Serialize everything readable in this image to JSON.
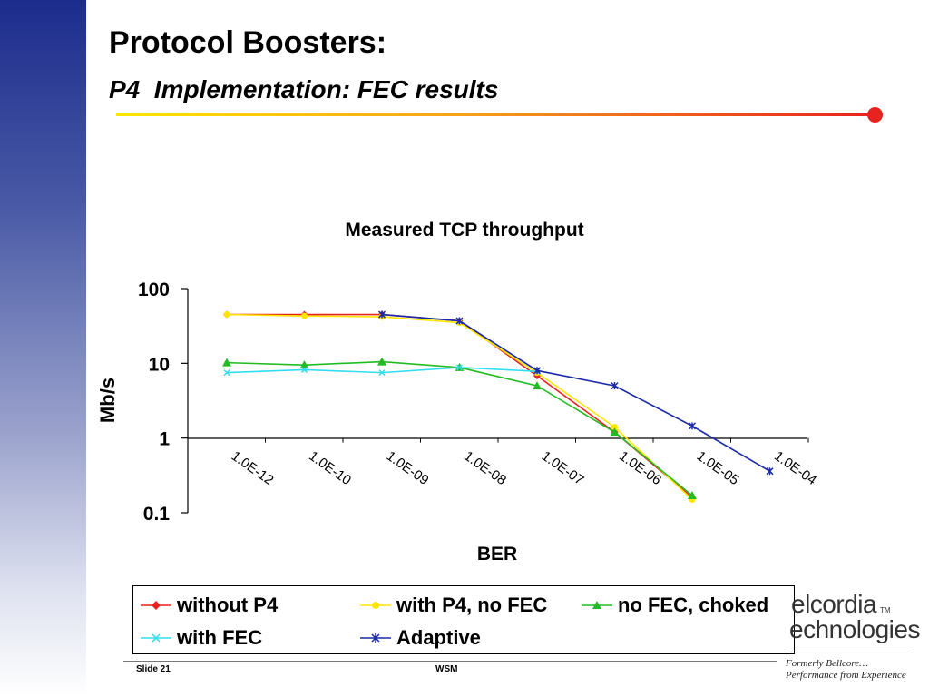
{
  "slide": {
    "title": "Protocol Boosters:",
    "subtitle": "P4  Implementation: FEC results",
    "footer_left": "Slide 21",
    "footer_center": "WSM",
    "logo": {
      "line1": "elcordia",
      "line2": "echnologies",
      "tm": "TM",
      "tag1": "Formerly Bellcore…",
      "tag2": "Performance from Experience"
    }
  },
  "chart_data": {
    "type": "line",
    "title": "Measured TCP throughput",
    "xlabel": "BER",
    "ylabel": "Mb/s",
    "yscale": "log",
    "ylim": [
      0.1,
      100
    ],
    "y_ticks": [
      "100",
      "10",
      "1",
      "0.1"
    ],
    "categories": [
      "1.0E-12",
      "1.0E-10",
      "1.0E-09",
      "1.0E-08",
      "1.0E-07",
      "1.0E-06",
      "1.0E-05",
      "1.0E-04"
    ],
    "series": [
      {
        "name": "without P4",
        "color": "#e8221e",
        "marker": "diamond",
        "values": [
          45,
          45,
          45,
          37,
          6.8,
          1.2,
          0.16,
          null
        ]
      },
      {
        "name": "with P4, no FEC",
        "color": "#ffe600",
        "marker": "circle",
        "values": [
          45,
          43,
          42,
          35,
          7.5,
          1.4,
          0.15,
          null
        ]
      },
      {
        "name": "no FEC, choked",
        "color": "#22bb22",
        "marker": "triangle",
        "values": [
          10.2,
          9.5,
          10.5,
          8.8,
          5.0,
          1.2,
          0.17,
          null
        ]
      },
      {
        "name": "with FEC",
        "color": "#33ddee",
        "marker": "x",
        "values": [
          7.5,
          8.2,
          7.5,
          8.8,
          7.8,
          null,
          null,
          null
        ]
      },
      {
        "name": "Adaptive",
        "color": "#1a2aa8",
        "marker": "star",
        "values": [
          null,
          null,
          45,
          37,
          8.0,
          5.0,
          1.45,
          0.36
        ]
      }
    ],
    "legend_position": "bottom",
    "grid": false
  }
}
